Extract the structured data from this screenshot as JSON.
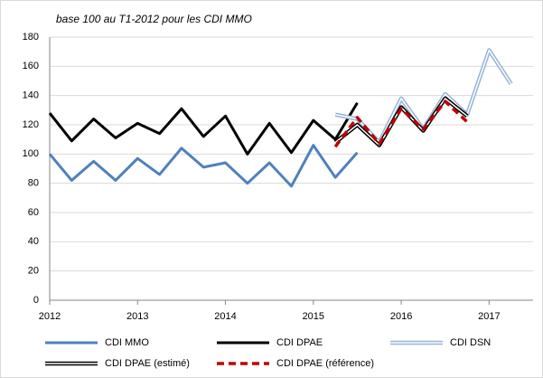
{
  "chart_data": {
    "type": "line",
    "title": "base 100 au T1-2012 pour les CDI MMO",
    "x": [
      2012,
      2012.25,
      2012.5,
      2012.75,
      2013,
      2013.25,
      2013.5,
      2013.75,
      2014,
      2014.25,
      2014.5,
      2014.75,
      2015,
      2015.25,
      2015.5,
      2015.75,
      2016,
      2016.25,
      2016.5,
      2016.75,
      2017,
      2017.25
    ],
    "series": [
      {
        "name": "CDI MMO",
        "color": "#4f81bd",
        "style": "solid",
        "values": [
          100,
          82,
          95,
          82,
          97,
          86,
          104,
          91,
          94,
          80,
          94,
          78,
          106,
          84,
          101,
          null,
          null,
          null,
          null,
          null,
          null,
          null
        ]
      },
      {
        "name": "CDI DPAE",
        "color": "#000000",
        "style": "solid",
        "values": [
          128,
          109,
          124,
          111,
          121,
          114,
          131,
          112,
          126,
          100,
          121,
          101,
          123,
          110,
          135,
          null,
          null,
          null,
          null,
          null,
          null,
          null
        ]
      },
      {
        "name": "CDI DSN",
        "color": "#95b3d7",
        "style": "double",
        "values": [
          null,
          null,
          null,
          null,
          null,
          null,
          null,
          null,
          null,
          null,
          null,
          null,
          null,
          127,
          124,
          108,
          138,
          117,
          141,
          127,
          171,
          148
        ]
      },
      {
        "name": "CDI DPAE (estimé)",
        "color": "#000000",
        "style": "double",
        "values": [
          null,
          null,
          null,
          null,
          null,
          null,
          null,
          null,
          null,
          null,
          null,
          null,
          null,
          108,
          120,
          106,
          132,
          116,
          138,
          126,
          null,
          null
        ]
      },
      {
        "name": "CDI DPAE (référence)",
        "color": "#c00000",
        "style": "dashed",
        "values": [
          null,
          null,
          null,
          null,
          null,
          null,
          null,
          null,
          null,
          null,
          null,
          null,
          null,
          105,
          125,
          107,
          131,
          117,
          136,
          122,
          null,
          null
        ]
      }
    ],
    "xlim": [
      2012,
      2017.5
    ],
    "xticks": [
      2012,
      2013,
      2014,
      2015,
      2016,
      2017
    ],
    "ylim": [
      0,
      180
    ],
    "yticks": [
      0,
      20,
      40,
      60,
      80,
      100,
      120,
      140,
      160,
      180
    ],
    "grid": true,
    "legend": "bottom"
  }
}
